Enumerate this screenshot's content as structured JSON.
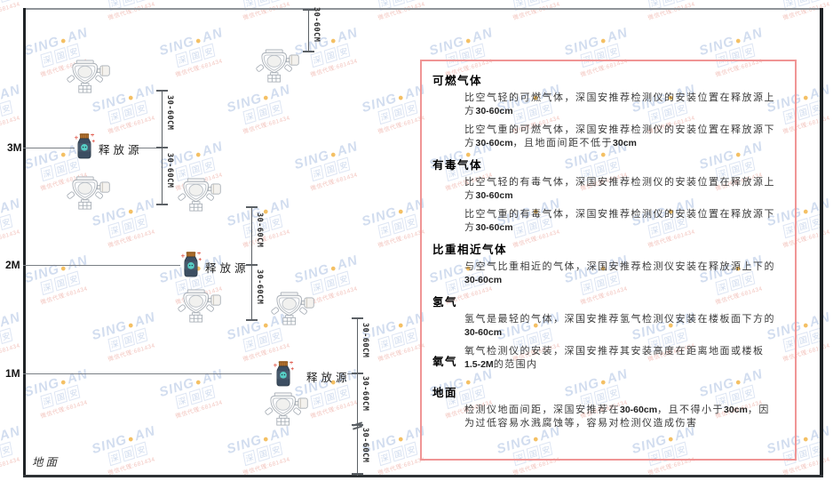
{
  "watermark": {
    "brand_left": "SING",
    "brand_right": "AN",
    "sun_icon": "sun-dot-icon",
    "seal_text": "深国安",
    "contact_text": "微信代理:681434",
    "brand_color": "#c7d5ec",
    "sun_color": "#f2b13e",
    "contact_color": "#f0b6ae"
  },
  "diagram": {
    "height_labels": {
      "m3": "3M",
      "m2": "2M",
      "m1": "1M"
    },
    "floor_label": "地面",
    "release_source_label": "释放源",
    "dimension_label": "30-60CM"
  },
  "panel": {
    "border_color": "#f09595",
    "sections": [
      {
        "heading": "可燃气体",
        "paras": [
          "比空气轻的可燃气体，深国安推荐检测仪的安装位置在释放源上方30-60cm",
          "比空气重的可燃气体，深国安推荐检测仪的安装位置在释放源下方30-60cm，且地面间距不低于30cm"
        ]
      },
      {
        "heading": "有毒气体",
        "paras": [
          "比空气轻的有毒气体，深国安推荐检测仪的安装位置在释放源上方30-60cm",
          "比空气重的有毒气体，深国安推荐检测仪的安装位置在释放源下方30-60cm"
        ]
      },
      {
        "heading": "比重相近气体",
        "paras": [
          "与空气比重相近的气体，深国安推荐检测仪安装在释放源上下的30-60cm"
        ]
      },
      {
        "heading": "氢气",
        "paras": [
          "氢气是最轻的气体，深国安推荐氢气检测仪安装在楼板面下方的30-60cm"
        ]
      },
      {
        "heading": "氧气",
        "inline": true,
        "paras": [
          "氧气检测仪的安装，深国安推荐其安装高度在距离地面或楼板1.5-2M的范围内"
        ]
      },
      {
        "heading": "地面",
        "gap_before": true,
        "paras": [
          "检测仪地面间距，深国安推荐在30-60cm，且不得小于30cm，因为过低容易水溅腐蚀等，容易对检测仪造成伤害"
        ]
      }
    ]
  }
}
